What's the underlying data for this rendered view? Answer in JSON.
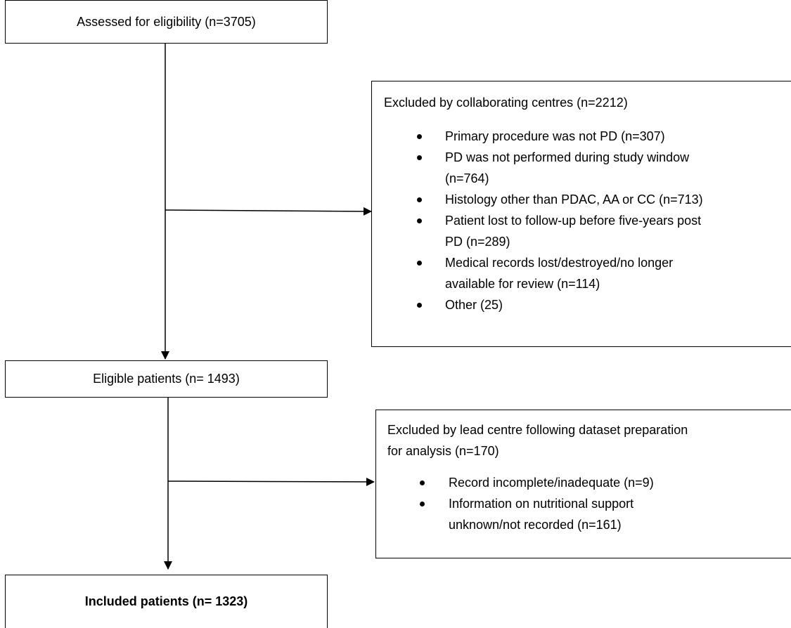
{
  "boxes": {
    "assessed": "Assessed for eligibility (n=3705)",
    "eligible": "Eligible patients (n= 1493)",
    "included": "Included patients (n= 1323)"
  },
  "exclusion1": {
    "heading": "Excluded by collaborating centres (n=2212)",
    "items": [
      [
        "Primary procedure was not PD (n=307)"
      ],
      [
        "PD was not performed during study window",
        "(n=764)"
      ],
      [
        "Histology other than PDAC, AA or CC (n=713)"
      ],
      [
        "Patient lost to follow-up before five-years post",
        "PD (n=289)"
      ],
      [
        "Medical records lost/destroyed/no longer",
        "available for review (n=114)"
      ],
      [
        "Other (25)"
      ]
    ]
  },
  "exclusion2": {
    "heading": [
      "Excluded by lead centre following dataset preparation",
      "for analysis (n=170)"
    ],
    "items": [
      [
        "Record incomplete/inadequate (n=9)"
      ],
      [
        "Information on nutritional support",
        "unknown/not recorded (n=161)"
      ]
    ]
  }
}
